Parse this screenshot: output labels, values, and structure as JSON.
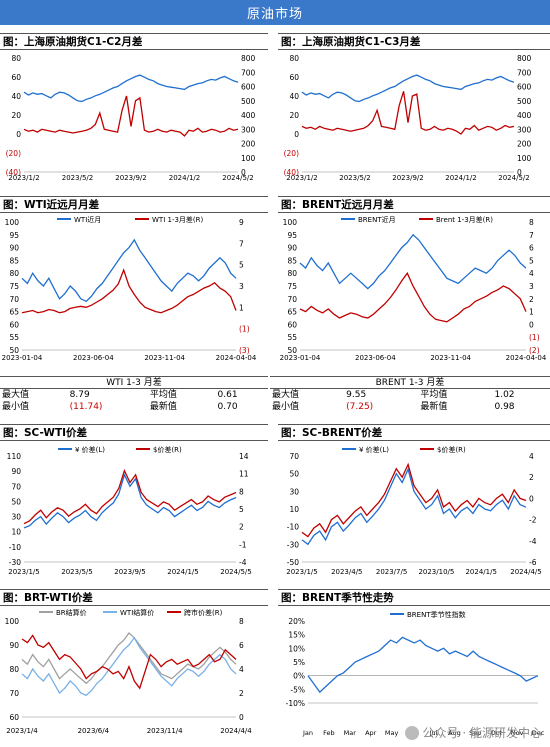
{
  "banner": "原油市场",
  "headers": {
    "h1": "图：上海原油期货C1-C2月差",
    "h2": "图：上海原油期货C1-C3月差",
    "h3": "图：WTI近远月月差",
    "h4": "图：BRENT近远月月差",
    "h5": "图：SC-WTI价差",
    "h6": "图：SC-BRENT价差",
    "h7": "图：BRT-WTI价差",
    "h8": "图：BRENT季节性走势"
  },
  "stats": {
    "wti": {
      "title": "WTI 1-3 月差",
      "max_label": "最大值",
      "max": "8.79",
      "avg_label": "平均值",
      "avg": "0.61",
      "min_label": "最小值",
      "min": "(11.74)",
      "latest_label": "最新值",
      "latest": "0.70"
    },
    "brent": {
      "title": "BRENT 1-3 月差",
      "max_label": "最大值",
      "max": "9.55",
      "avg_label": "平均值",
      "avg": "1.02",
      "min_label": "最小值",
      "min": "(7.25)",
      "latest_label": "最新值",
      "latest": "0.98"
    }
  },
  "watermark": "公众号 · 能源研发中心",
  "colors": {
    "blue": "#1f6fd1",
    "red": "#c00000",
    "gray": "#a0a0a0",
    "lightblue": "#7ab0e6"
  },
  "chart_data": [
    {
      "id": "c1",
      "type": "line",
      "title": "",
      "x_ticks": [
        "2023/1/2",
        "2023/5/2",
        "2023/9/2",
        "2024/1/2",
        "2024/5/2"
      ],
      "ylim_left": [
        -40,
        80
      ],
      "yticks_left": [
        80,
        60,
        40,
        20,
        0,
        "(20)",
        "(40)"
      ],
      "ylim_right": [
        0,
        800
      ],
      "yticks_right": [
        800,
        700,
        600,
        500,
        400,
        300,
        200,
        100,
        0
      ],
      "series": [
        {
          "axis": "right",
          "color": "#1f6fd1",
          "values": [
            560,
            540,
            555,
            545,
            550,
            535,
            520,
            545,
            560,
            555,
            540,
            520,
            500,
            495,
            510,
            520,
            535,
            545,
            560,
            575,
            590,
            600,
            620,
            640,
            655,
            670,
            680,
            665,
            650,
            640,
            620,
            610,
            600,
            595,
            590,
            585,
            580,
            600,
            610,
            620,
            625,
            640,
            650,
            645,
            660,
            670,
            655,
            640,
            630
          ]
        },
        {
          "axis": "left",
          "color": "#c00000",
          "values": [
            5,
            3,
            4,
            2,
            5,
            4,
            3,
            2,
            4,
            3,
            2,
            1,
            2,
            3,
            4,
            6,
            10,
            22,
            5,
            4,
            3,
            2,
            25,
            40,
            8,
            35,
            38,
            4,
            2,
            3,
            5,
            3,
            2,
            4,
            3,
            2,
            -2,
            4,
            3,
            6,
            2,
            3,
            5,
            4,
            2,
            3,
            6,
            4,
            5
          ]
        }
      ]
    },
    {
      "id": "c2",
      "type": "line",
      "title": "",
      "x_ticks": [
        "2023/1/2",
        "2023/5/2",
        "2023/9/2",
        "2024/1/2",
        "2024/5/2"
      ],
      "ylim_left": [
        -40,
        80
      ],
      "yticks_left": [
        80,
        60,
        40,
        20,
        0,
        "(20)",
        "(40)"
      ],
      "ylim_right": [
        0,
        800
      ],
      "yticks_right": [
        800,
        700,
        600,
        500,
        400,
        300,
        200,
        100,
        0
      ],
      "series": [
        {
          "axis": "right",
          "color": "#1f6fd1",
          "values": [
            560,
            540,
            555,
            545,
            550,
            535,
            520,
            545,
            560,
            555,
            540,
            520,
            500,
            495,
            510,
            520,
            535,
            545,
            560,
            575,
            590,
            600,
            620,
            640,
            655,
            670,
            680,
            665,
            650,
            640,
            620,
            610,
            600,
            595,
            590,
            585,
            580,
            600,
            610,
            620,
            625,
            640,
            650,
            645,
            660,
            670,
            655,
            640,
            630
          ]
        },
        {
          "axis": "left",
          "color": "#c00000",
          "values": [
            8,
            6,
            7,
            5,
            8,
            6,
            5,
            4,
            6,
            5,
            4,
            3,
            4,
            5,
            6,
            9,
            14,
            25,
            8,
            7,
            6,
            5,
            30,
            45,
            12,
            40,
            42,
            6,
            4,
            5,
            8,
            5,
            4,
            6,
            5,
            3,
            0,
            6,
            5,
            9,
            4,
            6,
            8,
            7,
            4,
            6,
            9,
            7,
            8
          ]
        }
      ]
    },
    {
      "id": "c3",
      "type": "line",
      "legend": [
        "WTI近月",
        "WTI 1-3月差(R)"
      ],
      "x_ticks": [
        "2023-01-04",
        "2023-06-04",
        "2023-11-04",
        "2024-04-04"
      ],
      "ylim_left": [
        50,
        100
      ],
      "yticks_left": [
        100,
        95,
        90,
        85,
        80,
        75,
        70,
        65,
        60,
        55,
        50
      ],
      "ylim_right": [
        -3,
        9
      ],
      "yticks_right": [
        9,
        7,
        5,
        3,
        1,
        "(1)",
        "(3)"
      ],
      "series": [
        {
          "name": "WTI近月",
          "axis": "left",
          "color": "#1f6fd1",
          "values": [
            78,
            76,
            80,
            77,
            75,
            78,
            74,
            70,
            72,
            75,
            73,
            70,
            69,
            71,
            74,
            76,
            79,
            82,
            85,
            88,
            90,
            93,
            89,
            86,
            83,
            80,
            77,
            75,
            73,
            76,
            78,
            80,
            79,
            77,
            79,
            82,
            84,
            86,
            84,
            80,
            78
          ]
        },
        {
          "name": "WTI 1-3月差(R)",
          "axis": "right",
          "color": "#c00000",
          "values": [
            0.5,
            0.6,
            0.7,
            0.5,
            0.6,
            0.8,
            0.7,
            0.5,
            0.6,
            0.9,
            1.0,
            1.1,
            1.0,
            1.2,
            1.5,
            1.8,
            2.2,
            2.6,
            3.2,
            4.5,
            3.0,
            2.2,
            1.5,
            1.0,
            0.8,
            0.6,
            0.5,
            0.7,
            0.9,
            1.2,
            1.6,
            2.0,
            2.2,
            2.5,
            2.8,
            3.0,
            3.3,
            2.8,
            2.5,
            2.0,
            0.7
          ]
        }
      ]
    },
    {
      "id": "c4",
      "type": "line",
      "legend": [
        "BRENT近月",
        "Brent 1-3月差(R)"
      ],
      "x_ticks": [
        "2023-01-04",
        "2023-06-04",
        "2023-11-04",
        "2024-04-04"
      ],
      "ylim_left": [
        50,
        100
      ],
      "yticks_left": [
        100,
        95,
        90,
        85,
        80,
        75,
        70,
        65,
        60,
        55,
        50
      ],
      "ylim_right": [
        -2,
        8
      ],
      "yticks_right": [
        8,
        7,
        6,
        5,
        4,
        3,
        2,
        1,
        0,
        "(1)",
        "(2)"
      ],
      "series": [
        {
          "name": "BRENT近月",
          "axis": "left",
          "color": "#1f6fd1",
          "values": [
            84,
            82,
            86,
            83,
            81,
            84,
            80,
            76,
            78,
            80,
            78,
            76,
            74,
            76,
            79,
            81,
            84,
            87,
            90,
            92,
            95,
            93,
            90,
            87,
            84,
            81,
            78,
            77,
            76,
            78,
            80,
            82,
            81,
            80,
            82,
            85,
            87,
            89,
            87,
            84,
            82
          ]
        },
        {
          "name": "Brent 1-3月差(R)",
          "axis": "right",
          "color": "#c00000",
          "values": [
            1.2,
            1.0,
            1.4,
            1.1,
            0.9,
            1.2,
            0.8,
            0.5,
            0.7,
            0.9,
            0.8,
            0.6,
            0.5,
            0.8,
            1.2,
            1.6,
            2.1,
            2.7,
            3.4,
            4.0,
            3.0,
            2.2,
            1.4,
            0.8,
            0.4,
            0.3,
            0.2,
            0.5,
            0.8,
            1.2,
            1.4,
            1.8,
            2.0,
            2.2,
            2.5,
            2.7,
            3.0,
            2.8,
            2.4,
            2.0,
            1.0
          ]
        }
      ]
    },
    {
      "id": "c5",
      "type": "line",
      "legend": [
        "¥ 价差(L)",
        "$价差(R)"
      ],
      "x_ticks": [
        "2023/1/5",
        "2023/5/5",
        "2023/9/5",
        "2024/1/5",
        "2024/5/5"
      ],
      "ylim_left": [
        -30,
        110
      ],
      "yticks_left": [
        110,
        90,
        70,
        50,
        30,
        10,
        -10,
        -30
      ],
      "ylim_right": [
        -4,
        14
      ],
      "yticks_right": [
        14,
        11,
        8,
        5,
        2,
        -1,
        -4
      ],
      "series": [
        {
          "name": "¥ 价差(L)",
          "axis": "left",
          "color": "#1f6fd1",
          "values": [
            15,
            18,
            25,
            30,
            20,
            28,
            35,
            30,
            22,
            28,
            32,
            38,
            30,
            25,
            35,
            42,
            48,
            60,
            85,
            70,
            80,
            55,
            45,
            40,
            35,
            42,
            38,
            30,
            35,
            40,
            45,
            38,
            42,
            50,
            45,
            42,
            48,
            52,
            55
          ]
        },
        {
          "name": "$价差(R)",
          "axis": "right",
          "color": "#c00000",
          "values": [
            2.5,
            3,
            4,
            4.8,
            3.5,
            4.5,
            5.2,
            4.8,
            3.8,
            4.5,
            5,
            5.8,
            4.8,
            4.2,
            5.4,
            6.2,
            7,
            8.5,
            11.5,
            9.5,
            10.8,
            7.8,
            6.6,
            6,
            5.4,
            6.2,
            5.8,
            4.8,
            5.4,
            6,
            6.6,
            5.8,
            6.2,
            7.2,
            6.6,
            6.2,
            7,
            7.4,
            7.8
          ]
        }
      ]
    },
    {
      "id": "c6",
      "type": "line",
      "legend": [
        "¥ 价差(L)",
        "$价差(R)"
      ],
      "x_ticks": [
        "2023/1/5",
        "2023/4/5",
        "2023/7/5",
        "2023/10/5",
        "2024/1/5",
        "2024/4/5"
      ],
      "ylim_left": [
        -50,
        70
      ],
      "yticks_left": [
        70,
        50,
        30,
        10,
        -10,
        -30,
        -50
      ],
      "ylim_right": [
        -6,
        4
      ],
      "yticks_right": [
        4,
        2,
        0,
        -2,
        -4,
        -6
      ],
      "series": [
        {
          "name": "¥ 价差(L)",
          "axis": "left",
          "color": "#1f6fd1",
          "values": [
            -25,
            -30,
            -20,
            -15,
            -25,
            -10,
            -5,
            -15,
            -8,
            0,
            5,
            -5,
            2,
            10,
            20,
            35,
            50,
            40,
            55,
            30,
            20,
            10,
            15,
            25,
            5,
            10,
            0,
            8,
            12,
            5,
            15,
            10,
            8,
            15,
            20,
            10,
            25,
            15,
            12
          ]
        },
        {
          "name": "$价差(R)",
          "axis": "right",
          "color": "#c00000",
          "values": [
            -3.2,
            -3.6,
            -2.8,
            -2.4,
            -3.2,
            -2,
            -1.6,
            -2.4,
            -1.8,
            -1.2,
            -0.8,
            -1.6,
            -1,
            -0.4,
            0.4,
            1.6,
            2.8,
            2,
            3.2,
            1.2,
            0.4,
            -0.4,
            0,
            0.8,
            -0.8,
            -0.4,
            -1.2,
            -0.6,
            -0.2,
            -0.8,
            0,
            -0.4,
            -0.6,
            0,
            0.4,
            -0.4,
            0.8,
            0,
            -0.2
          ]
        }
      ]
    },
    {
      "id": "c7",
      "type": "line",
      "legend": [
        "BR结算价",
        "WTI结算价",
        "跨市价差(R)"
      ],
      "x_ticks": [
        "2023/1/4",
        "2023/6/4",
        "2023/11/4",
        "2024/4/4"
      ],
      "ylim_left": [
        60,
        100
      ],
      "yticks_left": [
        100,
        90,
        80,
        70,
        60
      ],
      "ylim_right": [
        0,
        8
      ],
      "yticks_right": [
        8,
        6,
        4,
        2,
        0
      ],
      "series": [
        {
          "name": "BR结算价",
          "axis": "left",
          "color": "#a0a0a0",
          "values": [
            84,
            82,
            86,
            83,
            81,
            84,
            80,
            76,
            78,
            80,
            78,
            76,
            74,
            76,
            79,
            81,
            84,
            87,
            90,
            92,
            95,
            93,
            90,
            87,
            84,
            81,
            78,
            77,
            76,
            78,
            80,
            82,
            81,
            80,
            82,
            85,
            87,
            89,
            87,
            84,
            82
          ]
        },
        {
          "name": "WTI结算价",
          "axis": "left",
          "color": "#7ab0e6",
          "values": [
            78,
            76,
            80,
            77,
            75,
            78,
            74,
            70,
            72,
            75,
            73,
            70,
            69,
            71,
            74,
            76,
            79,
            82,
            85,
            88,
            90,
            93,
            89,
            86,
            83,
            80,
            77,
            75,
            73,
            76,
            78,
            80,
            79,
            77,
            79,
            82,
            84,
            86,
            84,
            80,
            78
          ]
        },
        {
          "name": "跨市价差(R)",
          "axis": "right",
          "color": "#c00000",
          "values": [
            6.5,
            6.2,
            6.8,
            6.0,
            5.8,
            6.2,
            5.5,
            4.8,
            5.2,
            5.0,
            4.5,
            4.0,
            3.2,
            3.6,
            3.8,
            4.2,
            4.0,
            3.6,
            3.8,
            3.2,
            4.2,
            3.0,
            2.4,
            3.8,
            5.2,
            4.8,
            4.2,
            4.6,
            4.8,
            4.4,
            4.6,
            4.8,
            4.2,
            4.4,
            4.8,
            5.2,
            4.6,
            4.8,
            5.6,
            5.2,
            4.8
          ]
        }
      ]
    },
    {
      "id": "c8",
      "type": "line",
      "legend": [
        "BRENT季节性指数"
      ],
      "x_ticks": [
        "Jan",
        "Feb",
        "Mar",
        "Apr",
        "May",
        "Jun",
        "Jul",
        "Aug",
        "Sep",
        "Oct",
        "Nov",
        "Dec"
      ],
      "ylim_left": [
        -10,
        20
      ],
      "yticks_left": [
        "20%",
        "15%",
        "10%",
        "5%",
        "0%",
        "-5%",
        "-10%"
      ],
      "series": [
        {
          "name": "BRENT季节性指数",
          "axis": "left",
          "color": "#1f6fd1",
          "values": [
            0,
            -3,
            -6,
            -4,
            -2,
            0,
            1,
            3,
            5,
            6,
            7,
            8,
            9,
            11,
            13,
            12,
            14,
            13,
            12,
            13,
            11,
            10,
            9,
            10,
            8,
            9,
            8,
            7,
            9,
            7,
            6,
            5,
            4,
            3,
            2,
            1,
            0,
            -2,
            -1,
            0
          ]
        }
      ]
    }
  ]
}
